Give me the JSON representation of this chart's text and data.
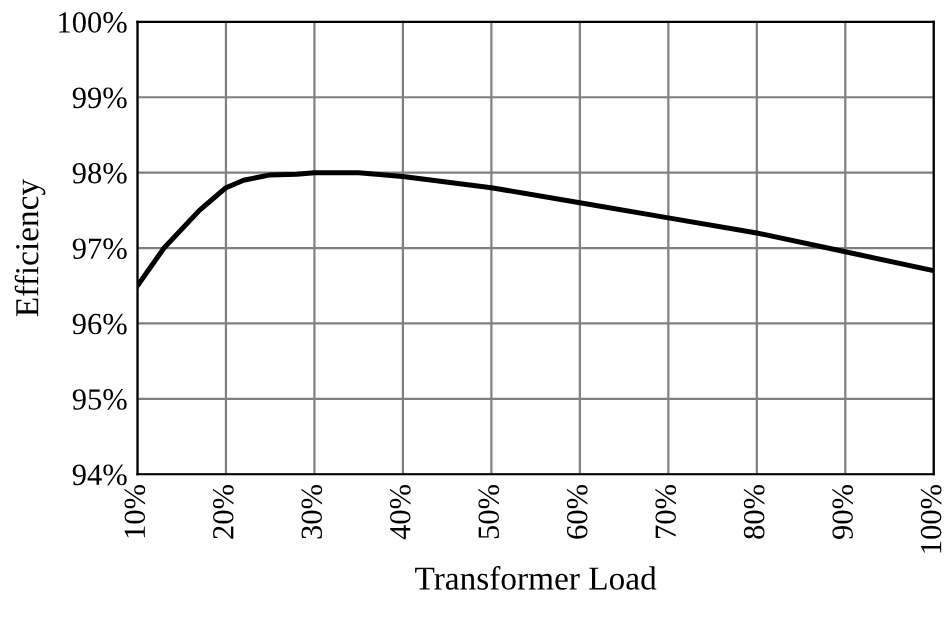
{
  "chart_data": {
    "type": "line",
    "xlabel": "Transformer Load",
    "ylabel": "Efficiency",
    "x": [
      10,
      13,
      17,
      19,
      20,
      22,
      25,
      28,
      30,
      35,
      40,
      50,
      60,
      70,
      80,
      90,
      100
    ],
    "series": [
      {
        "color": "#000000",
        "values": [
          96.5,
          97.0,
          97.5,
          97.7,
          97.8,
          97.9,
          97.97,
          97.98,
          98.0,
          98.0,
          97.95,
          97.8,
          97.6,
          97.4,
          97.2,
          96.95,
          96.7
        ]
      }
    ],
    "xlim": [
      10,
      100
    ],
    "ylim": [
      94,
      100
    ],
    "xticks": [
      {
        "value": 10,
        "label": "10%"
      },
      {
        "value": 20,
        "label": "20%"
      },
      {
        "value": 30,
        "label": "30%"
      },
      {
        "value": 40,
        "label": "40%"
      },
      {
        "value": 50,
        "label": "50%"
      },
      {
        "value": 60,
        "label": "60%"
      },
      {
        "value": 70,
        "label": "70%"
      },
      {
        "value": 80,
        "label": "80%"
      },
      {
        "value": 90,
        "label": "90%"
      },
      {
        "value": 100,
        "label": "100%"
      }
    ],
    "yticks": [
      {
        "value": 94,
        "label": "94%"
      },
      {
        "value": 95,
        "label": "95%"
      },
      {
        "value": 96,
        "label": "96%"
      },
      {
        "value": 97,
        "label": "97%"
      },
      {
        "value": 98,
        "label": "98%"
      },
      {
        "value": 99,
        "label": "99%"
      },
      {
        "value": 100,
        "label": "100%"
      }
    ],
    "grid": true,
    "marker": "none",
    "line_style": "solid"
  }
}
